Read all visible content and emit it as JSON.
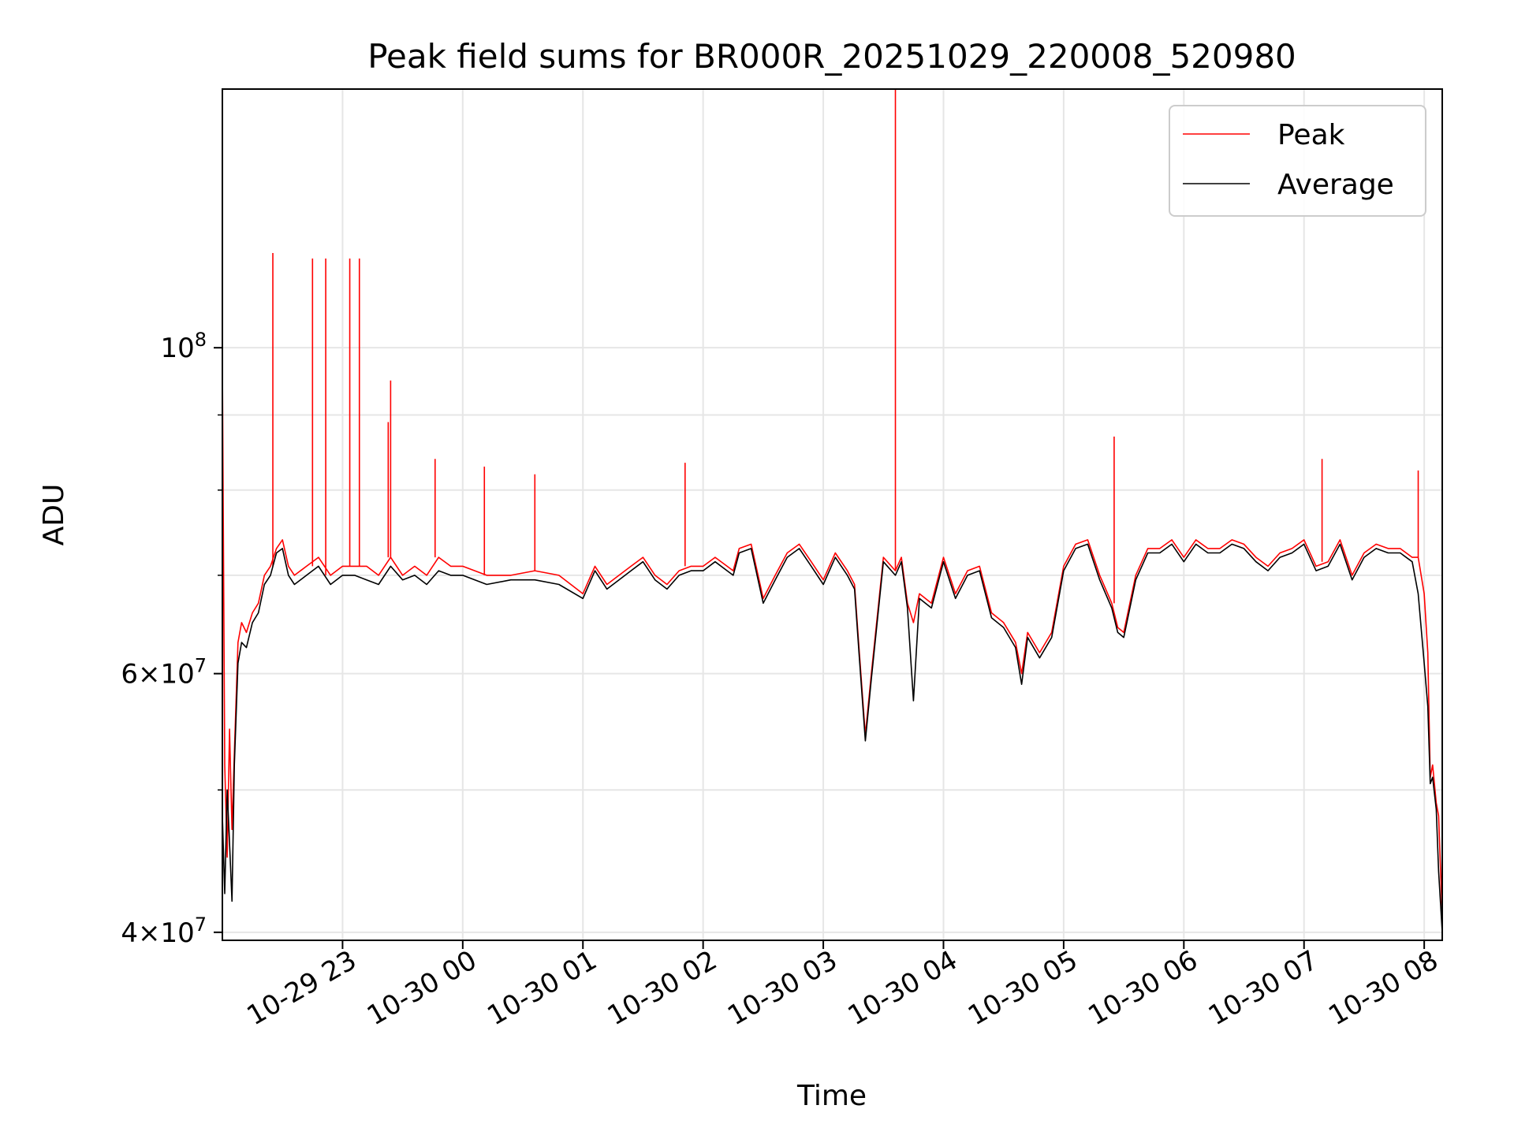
{
  "chart_data": {
    "type": "line",
    "title": "Peak field sums for BR000R_20251029_220008_520980",
    "xlabel": "Time",
    "ylabel": "ADU",
    "yscale": "log",
    "ylim": [
      39500000,
      150000000
    ],
    "xlim_hours": [
      0.0,
      10.15
    ],
    "grid": true,
    "legend_position": "top-right",
    "x_ticks": [
      {
        "label": "10-29 23",
        "hour": 1.0
      },
      {
        "label": "10-30 00",
        "hour": 2.0
      },
      {
        "label": "10-30 01",
        "hour": 3.0
      },
      {
        "label": "10-30 02",
        "hour": 4.0
      },
      {
        "label": "10-30 03",
        "hour": 5.0
      },
      {
        "label": "10-30 04",
        "hour": 6.0
      },
      {
        "label": "10-30 05",
        "hour": 7.0
      },
      {
        "label": "10-30 06",
        "hour": 8.0
      },
      {
        "label": "10-30 07",
        "hour": 9.0
      },
      {
        "label": "10-30 08",
        "hour": 10.0
      }
    ],
    "y_ticks": [
      {
        "base": "4",
        "exp": "7",
        "value": 40000000
      },
      {
        "base": "6",
        "exp": "7",
        "value": 60000000
      },
      {
        "base": "",
        "exp": "8",
        "value": 100000000
      }
    ],
    "y_minor_ticks": [
      50000000,
      70000000,
      80000000,
      90000000
    ],
    "series": [
      {
        "name": "Peak",
        "color": "#ff0000",
        "x_hours": [
          0.0,
          0.02,
          0.04,
          0.06,
          0.08,
          0.1,
          0.13,
          0.16,
          0.2,
          0.25,
          0.3,
          0.35,
          0.4,
          0.45,
          0.5,
          0.55,
          0.6,
          0.7,
          0.8,
          0.9,
          1.0,
          1.1,
          1.2,
          1.3,
          1.4,
          1.5,
          1.6,
          1.7,
          1.8,
          1.9,
          2.0,
          2.2,
          2.4,
          2.6,
          2.8,
          3.0,
          3.1,
          3.2,
          3.3,
          3.4,
          3.5,
          3.6,
          3.7,
          3.8,
          3.9,
          4.0,
          4.1,
          4.2,
          4.25,
          4.3,
          4.4,
          4.5,
          4.6,
          4.7,
          4.8,
          4.9,
          5.0,
          5.1,
          5.2,
          5.26,
          5.3,
          5.35,
          5.4,
          5.5,
          5.6,
          5.65,
          5.7,
          5.75,
          5.8,
          5.9,
          6.0,
          6.1,
          6.2,
          6.3,
          6.4,
          6.5,
          6.6,
          6.65,
          6.7,
          6.8,
          6.9,
          7.0,
          7.1,
          7.2,
          7.3,
          7.4,
          7.45,
          7.5,
          7.6,
          7.7,
          7.8,
          7.9,
          8.0,
          8.1,
          8.2,
          8.3,
          8.4,
          8.5,
          8.6,
          8.7,
          8.8,
          8.9,
          9.0,
          9.1,
          9.2,
          9.3,
          9.4,
          9.5,
          9.6,
          9.7,
          9.8,
          9.9,
          9.95,
          10.0,
          10.03,
          10.05,
          10.07,
          10.1,
          10.12,
          10.15
        ],
        "values": [
          98000000,
          52000000,
          45000000,
          55000000,
          47000000,
          53000000,
          63000000,
          65000000,
          64000000,
          66000000,
          67000000,
          70000000,
          71000000,
          73000000,
          74000000,
          71000000,
          70000000,
          71000000,
          72000000,
          70000000,
          71000000,
          71000000,
          71000000,
          70000000,
          72000000,
          70000000,
          71000000,
          70000000,
          72000000,
          71000000,
          71000000,
          70000000,
          70000000,
          70500000,
          70000000,
          68000000,
          71000000,
          69000000,
          70000000,
          71000000,
          72000000,
          70000000,
          69000000,
          70500000,
          71000000,
          71000000,
          72000000,
          71000000,
          70500000,
          73000000,
          73500000,
          67500000,
          70000000,
          72500000,
          73500000,
          71500000,
          69500000,
          72500000,
          70500000,
          69000000,
          62000000,
          54500000,
          60000000,
          72000000,
          70500000,
          72000000,
          67000000,
          65000000,
          68000000,
          67000000,
          72000000,
          68000000,
          70500000,
          71000000,
          66000000,
          65000000,
          63000000,
          60000000,
          64000000,
          62000000,
          64000000,
          71000000,
          73500000,
          74000000,
          70000000,
          67000000,
          64500000,
          64000000,
          70000000,
          73000000,
          73000000,
          74000000,
          72000000,
          74000000,
          73000000,
          73000000,
          74000000,
          73500000,
          72000000,
          71000000,
          72500000,
          73000000,
          74000000,
          71000000,
          71500000,
          74000000,
          70000000,
          72500000,
          73500000,
          73000000,
          73000000,
          72000000,
          72000000,
          68000000,
          62000000,
          51000000,
          52000000,
          49000000,
          48000000,
          41000000
        ],
        "spikes": [
          {
            "hour": 0.42,
            "value": 116000000
          },
          {
            "hour": 0.75,
            "value": 115000000
          },
          {
            "hour": 0.86,
            "value": 115000000
          },
          {
            "hour": 1.06,
            "value": 115000000
          },
          {
            "hour": 1.14,
            "value": 115000000
          },
          {
            "hour": 1.38,
            "value": 89000000
          },
          {
            "hour": 1.4,
            "value": 95000000
          },
          {
            "hour": 1.77,
            "value": 84000000
          },
          {
            "hour": 2.18,
            "value": 83000000
          },
          {
            "hour": 2.6,
            "value": 82000000
          },
          {
            "hour": 3.85,
            "value": 83500000
          },
          {
            "hour": 5.6,
            "value": 150000000
          },
          {
            "hour": 7.42,
            "value": 87000000
          },
          {
            "hour": 9.15,
            "value": 84000000
          },
          {
            "hour": 9.95,
            "value": 82500000
          }
        ]
      },
      {
        "name": "Average",
        "color": "#000000",
        "x_hours": [
          0.0,
          0.02,
          0.04,
          0.06,
          0.08,
          0.1,
          0.13,
          0.16,
          0.2,
          0.25,
          0.3,
          0.35,
          0.4,
          0.45,
          0.5,
          0.55,
          0.6,
          0.7,
          0.8,
          0.9,
          1.0,
          1.1,
          1.2,
          1.3,
          1.4,
          1.5,
          1.6,
          1.7,
          1.8,
          1.9,
          2.0,
          2.2,
          2.4,
          2.6,
          2.8,
          3.0,
          3.1,
          3.2,
          3.3,
          3.4,
          3.5,
          3.6,
          3.7,
          3.8,
          3.9,
          4.0,
          4.1,
          4.2,
          4.25,
          4.3,
          4.4,
          4.5,
          4.6,
          4.7,
          4.8,
          4.9,
          5.0,
          5.1,
          5.2,
          5.26,
          5.3,
          5.35,
          5.4,
          5.5,
          5.6,
          5.65,
          5.7,
          5.75,
          5.8,
          5.9,
          6.0,
          6.1,
          6.2,
          6.3,
          6.4,
          6.5,
          6.6,
          6.65,
          6.7,
          6.8,
          6.9,
          7.0,
          7.1,
          7.2,
          7.3,
          7.4,
          7.45,
          7.5,
          7.6,
          7.7,
          7.8,
          7.9,
          8.0,
          8.1,
          8.2,
          8.3,
          8.4,
          8.5,
          8.6,
          8.7,
          8.8,
          8.9,
          9.0,
          9.1,
          9.2,
          9.3,
          9.4,
          9.5,
          9.6,
          9.7,
          9.8,
          9.9,
          9.95,
          10.0,
          10.03,
          10.05,
          10.07,
          10.1,
          10.12,
          10.15
        ],
        "values": [
          48000000,
          42500000,
          50000000,
          46000000,
          42000000,
          52000000,
          61000000,
          63000000,
          62500000,
          65000000,
          66000000,
          69000000,
          70000000,
          72500000,
          73000000,
          70000000,
          69000000,
          70000000,
          71000000,
          69000000,
          70000000,
          70000000,
          69500000,
          69000000,
          71000000,
          69500000,
          70000000,
          69000000,
          70500000,
          70000000,
          70000000,
          69000000,
          69500000,
          69500000,
          69000000,
          67500000,
          70500000,
          68500000,
          69500000,
          70500000,
          71500000,
          69500000,
          68500000,
          70000000,
          70500000,
          70500000,
          71500000,
          70500000,
          70000000,
          72500000,
          73000000,
          67000000,
          69500000,
          72000000,
          73000000,
          71000000,
          69000000,
          72000000,
          70000000,
          68500000,
          61500000,
          54000000,
          59500000,
          71500000,
          70000000,
          71500000,
          66500000,
          57500000,
          67500000,
          66500000,
          71500000,
          67500000,
          70000000,
          70500000,
          65500000,
          64500000,
          62500000,
          59000000,
          63500000,
          61500000,
          63500000,
          70500000,
          73000000,
          73500000,
          69500000,
          66500000,
          64000000,
          63500000,
          69500000,
          72500000,
          72500000,
          73500000,
          71500000,
          73500000,
          72500000,
          72500000,
          73500000,
          73000000,
          71500000,
          70500000,
          72000000,
          72500000,
          73500000,
          70500000,
          71000000,
          73500000,
          69500000,
          72000000,
          73000000,
          72500000,
          72500000,
          71500000,
          68000000,
          61000000,
          57000000,
          50500000,
          51000000,
          48500000,
          44000000,
          40000000
        ]
      }
    ]
  }
}
